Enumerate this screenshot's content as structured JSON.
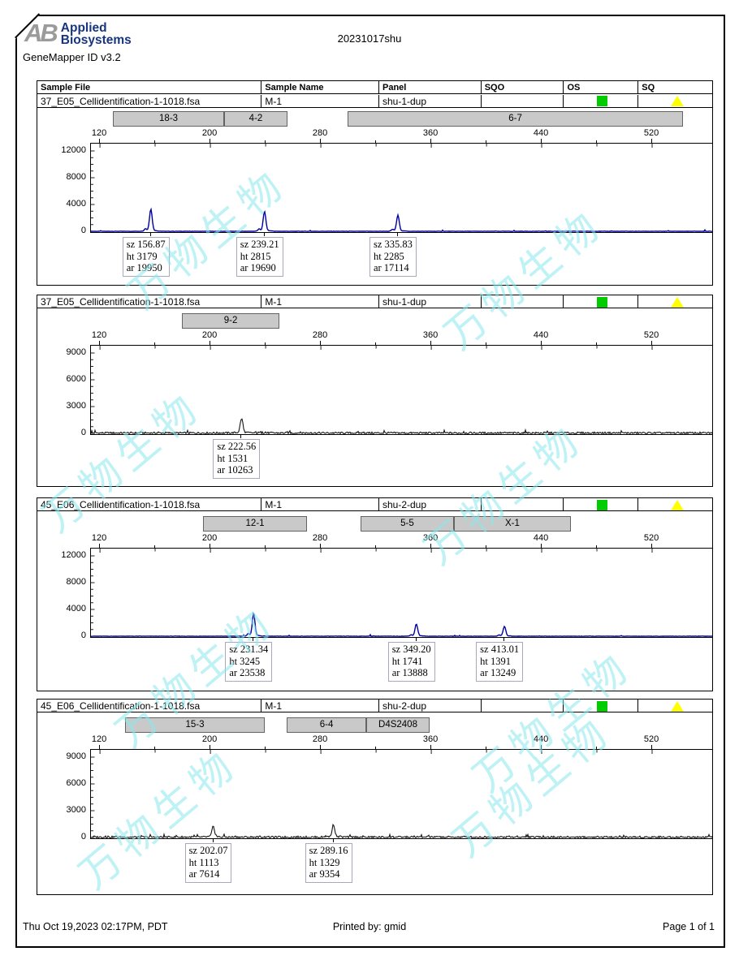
{
  "header": {
    "logo_ab": "AB",
    "logo_line1": "Applied",
    "logo_line2": "Biosystems",
    "app_version": "GeneMapper ID v3.2",
    "title": "20231017shu"
  },
  "table": {
    "columns": [
      "Sample File",
      "Sample Name",
      "Panel",
      "SQO",
      "OS",
      "SQ"
    ]
  },
  "status": {
    "os_green": "#00cc00",
    "sq_yellow": "#ffff00"
  },
  "watermark": {
    "text": "万物生物",
    "color": "#8ae8ec"
  },
  "footer": {
    "left": "Thu Oct 19,2023 02:17PM, PDT",
    "center": "Printed by: gmid",
    "right": "Page 1 of 1"
  },
  "chart_data": {
    "type": "line",
    "x_axis": {
      "unit": "bp",
      "min_bp": 113.5,
      "max_bp": 563.5,
      "major_ticks": [
        120,
        200,
        280,
        360,
        440,
        520
      ],
      "minor_ticks": [
        160,
        240,
        320,
        400,
        480
      ]
    },
    "panels": [
      {
        "sample_file": "37_E05_Cellidentification-1-1018.fsa",
        "sample_name": "M-1",
        "panel_name": "shu-1-dup",
        "sqo": "",
        "os": "green-square",
        "sq": "yellow-triangle",
        "trace_color": "#0000a0",
        "y_ticks": [
          12000,
          8000,
          4000,
          0
        ],
        "ylim": [
          0,
          13300
        ],
        "bins": [
          {
            "label": "18-3",
            "from": 130.0,
            "to": 210.6
          },
          {
            "label": "4-2",
            "from": 210.6,
            "to": 256.4
          },
          {
            "label": "6-7",
            "from": 300.0,
            "to": 543.0
          }
        ],
        "peaks": [
          {
            "sz": 156.87,
            "ht": 3179,
            "ar": 19950,
            "lines": [
              "sz 156.87",
              "ht 3179",
              "ar 19950"
            ]
          },
          {
            "sz": 239.21,
            "ht": 2815,
            "ar": 19690,
            "lines": [
              "sz 239.21",
              "ht 2815",
              "ar 19690"
            ]
          },
          {
            "sz": 335.83,
            "ht": 2285,
            "ar": 17114,
            "lines": [
              "sz 335.83",
              "ht 2285",
              "ar 17114"
            ]
          }
        ]
      },
      {
        "sample_file": "37_E05_Cellidentification-1-1018.fsa",
        "sample_name": "M-1",
        "panel_name": "shu-1-dup",
        "sqo": "",
        "os": "green-square",
        "sq": "yellow-triangle",
        "trace_color": "#141414",
        "y_ticks": [
          9000,
          6000,
          3000,
          0
        ],
        "ylim": [
          0,
          9950
        ],
        "bins": [
          {
            "label": "9-2",
            "from": 180.0,
            "to": 250.6
          }
        ],
        "peaks": [
          {
            "sz": 222.56,
            "ht": 1531,
            "ar": 10263,
            "lines": [
              "sz 222.56",
              "ht 1531",
              "ar 10263"
            ]
          }
        ]
      },
      {
        "sample_file": "45_E06_Cellidentification-1-1018.fsa",
        "sample_name": "M-1",
        "panel_name": "shu-2-dup",
        "sqo": "",
        "os": "green-square",
        "sq": "yellow-triangle",
        "trace_color": "#0000a0",
        "y_ticks": [
          12000,
          8000,
          4000,
          0
        ],
        "ylim": [
          0,
          13300
        ],
        "bins": [
          {
            "label": "12-1",
            "from": 195.3,
            "to": 270.6
          },
          {
            "label": "5-5",
            "from": 309.4,
            "to": 377.0
          },
          {
            "label": "X-1",
            "from": 377.0,
            "to": 461.7
          }
        ],
        "peaks": [
          {
            "sz": 231.34,
            "ht": 3245,
            "ar": 23538,
            "lines": [
              "sz 231.34",
              "ht 3245",
              "ar 23538"
            ]
          },
          {
            "sz": 349.2,
            "ht": 1741,
            "ar": 13888,
            "lines": [
              "sz 349.20",
              "ht 1741",
              "ar 13888"
            ]
          },
          {
            "sz": 413.01,
            "ht": 1391,
            "ar": 13249,
            "lines": [
              "sz 413.01",
              "ht 1391",
              "ar 13249"
            ]
          }
        ]
      },
      {
        "sample_file": "45_E06_Cellidentification-1-1018.fsa",
        "sample_name": "M-1",
        "panel_name": "shu-2-dup",
        "sqo": "",
        "os": "green-square",
        "sq": "yellow-triangle",
        "trace_color": "#141414",
        "y_ticks": [
          9000,
          6000,
          3000,
          0
        ],
        "ylim": [
          0,
          9950
        ],
        "bins": [
          {
            "label": "15-3",
            "from": 138.8,
            "to": 240.0
          },
          {
            "label": "6-4",
            "from": 255.9,
            "to": 313.5
          },
          {
            "label": "D4S2408",
            "from": 313.5,
            "to": 359.4
          }
        ],
        "peaks": [
          {
            "sz": 202.07,
            "ht": 1113,
            "ar": 7614,
            "lines": [
              "sz 202.07",
              "ht 1113",
              "ar 7614"
            ]
          },
          {
            "sz": 289.16,
            "ht": 1329,
            "ar": 9354,
            "lines": [
              "sz 289.16",
              "ht 1329",
              "ar 9354"
            ]
          }
        ]
      }
    ]
  }
}
